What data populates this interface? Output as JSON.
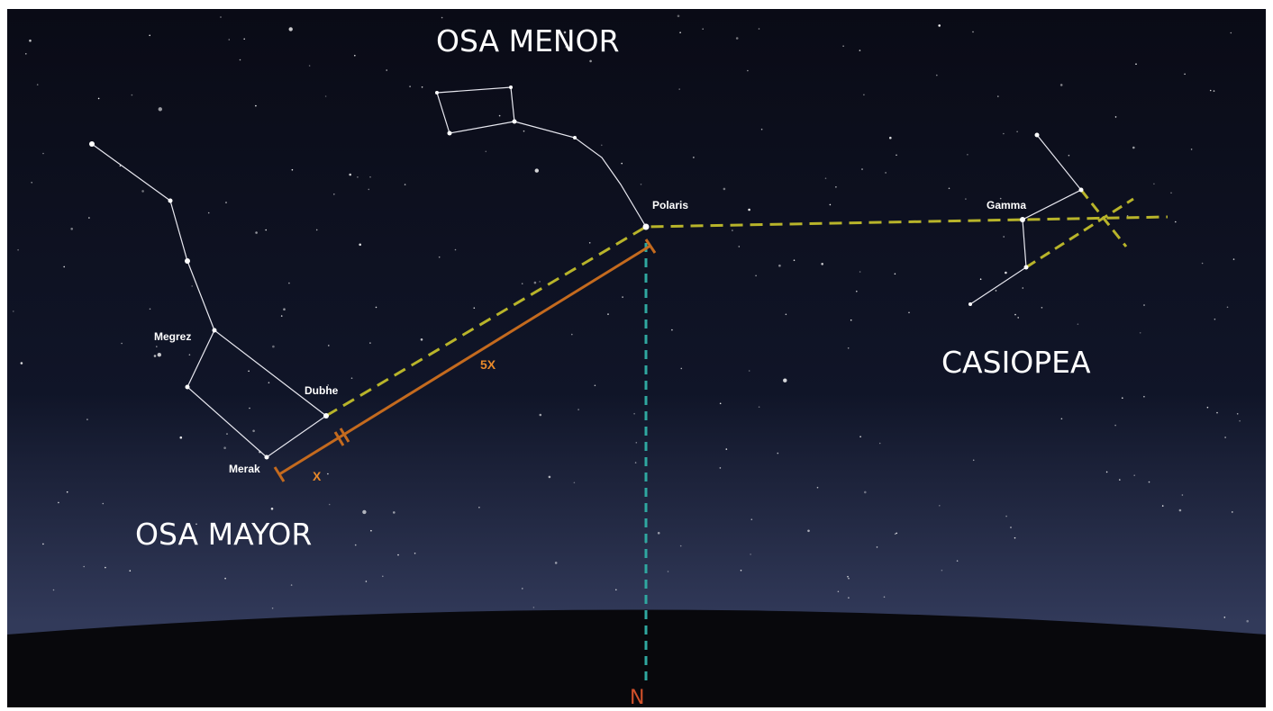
{
  "constellations": [
    "OSA MENOR",
    "CASIOPEA",
    "OSA MAYOR"
  ],
  "stars": [
    "Polaris",
    "Gamma",
    "Megrez",
    "Dubhe",
    "Merak"
  ],
  "measures": [
    "5X",
    "X"
  ],
  "direction": "N"
}
